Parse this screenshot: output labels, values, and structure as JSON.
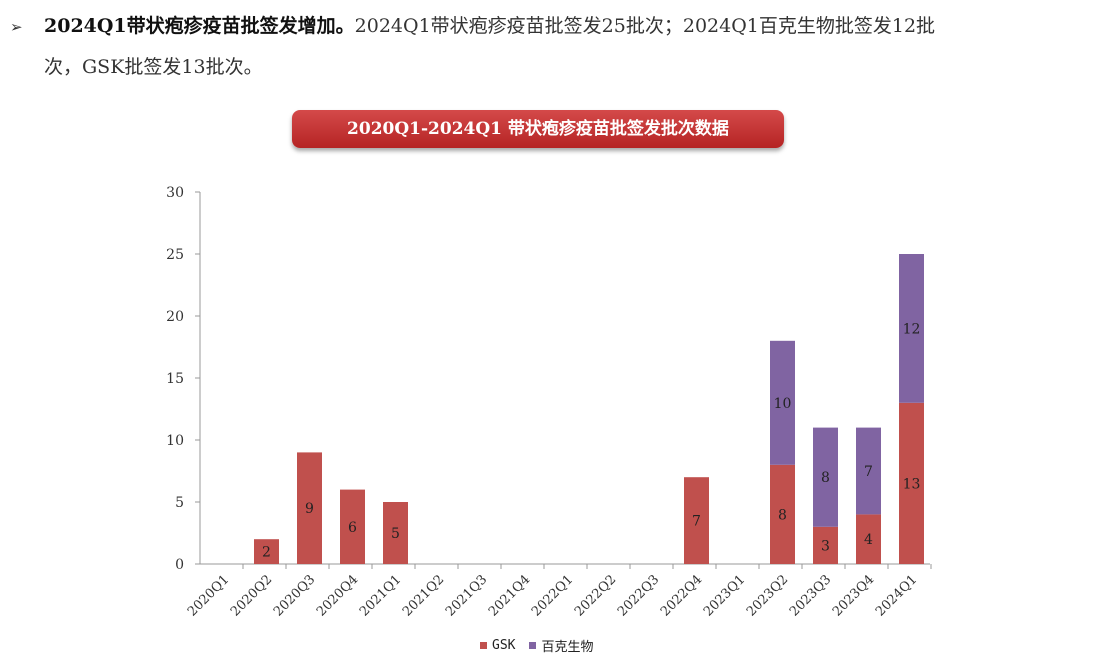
{
  "intro": {
    "bullet": "➢",
    "lead": "2024Q1带状疱疹疫苗批签发增加。",
    "text_1": "2024Q1带状疱疹疫苗批签发25批次；2024Q1百克生物批签发12批",
    "text_2": "次，GSK批签发13批次。"
  },
  "chart_data": {
    "type": "bar",
    "stacked": true,
    "title": "2020Q1-2024Q1 带状疱疹疫苗批签发批次数据",
    "xlabel": "",
    "ylabel": "",
    "categories": [
      "2020Q1",
      "2020Q2",
      "2020Q3",
      "2020Q4",
      "2021Q1",
      "2021Q2",
      "2021Q3",
      "2021Q4",
      "2022Q1",
      "2022Q2",
      "2022Q3",
      "2022Q4",
      "2023Q1",
      "2023Q2",
      "2023Q3",
      "2023Q4",
      "2024Q1"
    ],
    "series": [
      {
        "name": "GSK",
        "color": "#c0504d",
        "values": [
          0,
          2,
          9,
          6,
          5,
          0,
          0,
          0,
          0,
          0,
          0,
          7,
          0,
          8,
          3,
          4,
          13
        ]
      },
      {
        "name": "百克生物",
        "color": "#8064a2",
        "values": [
          0,
          0,
          0,
          0,
          0,
          0,
          0,
          0,
          0,
          0,
          0,
          0,
          0,
          10,
          8,
          7,
          12
        ]
      }
    ],
    "yticks": [
      0,
      5,
      10,
      15,
      20,
      25,
      30
    ],
    "ylim": [
      0,
      30
    ],
    "grid": false,
    "legend_position": "bottom"
  }
}
